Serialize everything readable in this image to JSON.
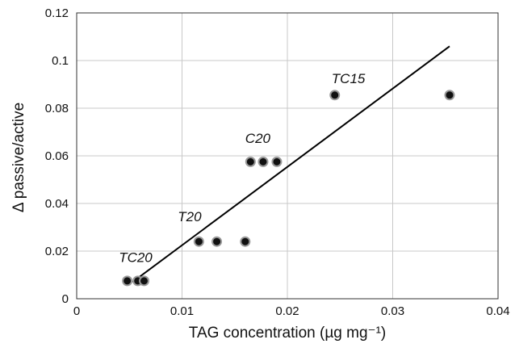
{
  "chart_data": {
    "type": "scatter",
    "title": "",
    "xlabel": "TAG concentration (µg mg⁻¹)",
    "ylabel": "Δ passive/active",
    "xlim": [
      0,
      0.04
    ],
    "ylim": [
      0,
      0.12
    ],
    "x_ticks": [
      "0",
      "0.01",
      "0.02",
      "0.03",
      "0.04"
    ],
    "y_ticks": [
      "0",
      "0.02",
      "0.04",
      "0.06",
      "0.08",
      "0.1",
      "0.12"
    ],
    "grid": true,
    "points": [
      {
        "x": 0.0048,
        "y": 0.0075
      },
      {
        "x": 0.0058,
        "y": 0.0075
      },
      {
        "x": 0.0064,
        "y": 0.0075
      },
      {
        "x": 0.0116,
        "y": 0.024
      },
      {
        "x": 0.0133,
        "y": 0.024
      },
      {
        "x": 0.016,
        "y": 0.024
      },
      {
        "x": 0.0165,
        "y": 0.0575
      },
      {
        "x": 0.0177,
        "y": 0.0575
      },
      {
        "x": 0.019,
        "y": 0.0575
      },
      {
        "x": 0.0245,
        "y": 0.0855
      },
      {
        "x": 0.0354,
        "y": 0.0855
      }
    ],
    "trendline": {
      "x": [
        0.0053,
        0.0354
      ],
      "y": [
        0.007,
        0.106
      ]
    },
    "annotations": [
      {
        "text": "TC20",
        "x": 0.004,
        "y": 0.0155
      },
      {
        "text": "T20",
        "x": 0.0096,
        "y": 0.0325
      },
      {
        "text": "C20",
        "x": 0.016,
        "y": 0.0655
      },
      {
        "text": "TC15",
        "x": 0.0242,
        "y": 0.0905
      }
    ],
    "colors": {
      "marker_fill": "#111111",
      "marker_edge": "#999999",
      "line": "#000000",
      "grid": "#c8c8c8"
    }
  }
}
